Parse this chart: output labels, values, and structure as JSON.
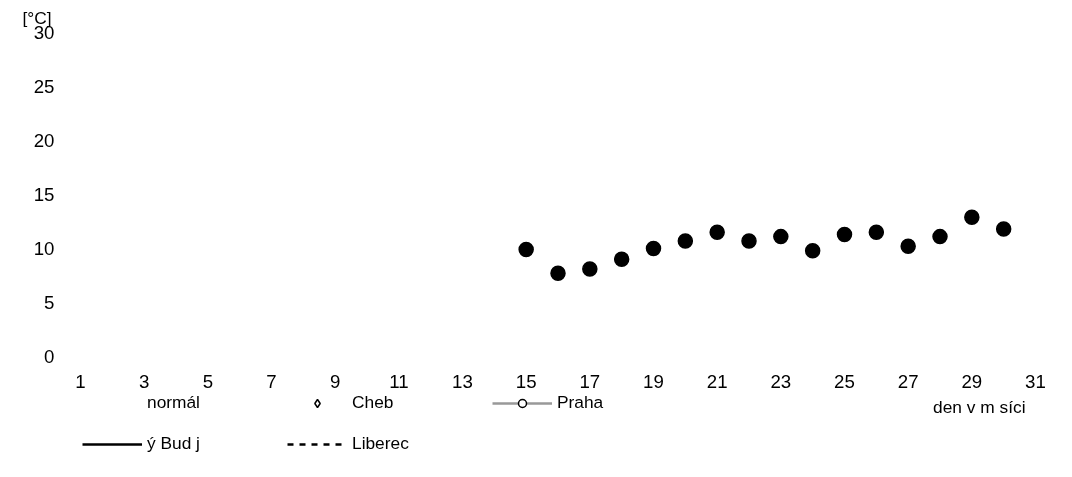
{
  "chart_data": {
    "type": "scatter",
    "ylabel": "[°C]",
    "xlabel": "den v m síci",
    "x": [
      15,
      16,
      17,
      18,
      19,
      20,
      21,
      22,
      23,
      24,
      25,
      26,
      27,
      28,
      29,
      30
    ],
    "series": [
      {
        "type": "scatter",
        "color": "#000000",
        "marker": "circle",
        "values": [
          9.9,
          7.7,
          8.1,
          9.0,
          10.0,
          10.7,
          11.5,
          10.7,
          11.1,
          9.8,
          11.3,
          11.5,
          10.2,
          11.1,
          12.9,
          11.8
        ]
      },
      {
        "type": "line",
        "name": "normál",
        "line_style": "none",
        "values": [
          null,
          null,
          null,
          null,
          null,
          null,
          null,
          null,
          null,
          null,
          null,
          null,
          null,
          null,
          null,
          null
        ]
      },
      {
        "type": "scatter",
        "name": "Cheb",
        "color": "#000000",
        "marker": "diamond",
        "values": [
          null,
          null,
          null,
          null,
          null,
          null,
          null,
          null,
          null,
          null,
          null,
          null,
          null,
          null,
          null,
          null
        ]
      },
      {
        "type": "line",
        "name": "Praha",
        "color": "#999999",
        "marker": "circle",
        "line_style": "solid",
        "values": [
          null,
          null,
          null,
          null,
          null,
          null,
          null,
          null,
          null,
          null,
          null,
          null,
          null,
          null,
          null,
          null
        ]
      },
      {
        "type": "line",
        "name": "ý Bud j",
        "color": "#000000",
        "line_style": "solid",
        "values": [
          null,
          null,
          null,
          null,
          null,
          null,
          null,
          null,
          null,
          null,
          null,
          null,
          null,
          null,
          null,
          null
        ]
      },
      {
        "type": "line",
        "name": "Liberec",
        "color": "#000000",
        "line_style": "dashed",
        "values": [
          null,
          null,
          null,
          null,
          null,
          null,
          null,
          null,
          null,
          null,
          null,
          null,
          null,
          null,
          null,
          null
        ]
      }
    ],
    "xlim": [
      1,
      31
    ],
    "xticks": [
      1,
      3,
      5,
      7,
      9,
      11,
      13,
      15,
      17,
      19,
      21,
      23,
      25,
      27,
      29,
      31
    ],
    "ylim": [
      0,
      30
    ],
    "yticks": [
      0,
      5,
      10,
      15,
      20,
      25,
      30
    ],
    "grid": false,
    "legend": "bottom"
  }
}
